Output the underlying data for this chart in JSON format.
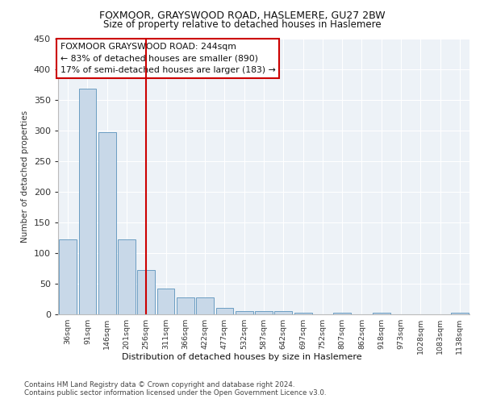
{
  "title1": "FOXMOOR, GRAYSWOOD ROAD, HASLEMERE, GU27 2BW",
  "title2": "Size of property relative to detached houses in Haslemere",
  "xlabel": "Distribution of detached houses by size in Haslemere",
  "ylabel": "Number of detached properties",
  "bar_labels": [
    "36sqm",
    "91sqm",
    "146sqm",
    "201sqm",
    "256sqm",
    "311sqm",
    "366sqm",
    "422sqm",
    "477sqm",
    "532sqm",
    "587sqm",
    "642sqm",
    "697sqm",
    "752sqm",
    "807sqm",
    "862sqm",
    "918sqm",
    "973sqm",
    "1028sqm",
    "1083sqm",
    "1138sqm"
  ],
  "bar_values": [
    122,
    368,
    297,
    122,
    72,
    42,
    28,
    28,
    10,
    5,
    5,
    5,
    2,
    0,
    3,
    0,
    2,
    0,
    0,
    0,
    2
  ],
  "bar_color": "#c8d8e8",
  "bar_edge_color": "#6b9dc2",
  "vline_x": 4,
  "vline_color": "#cc0000",
  "annotation_text": "FOXMOOR GRAYSWOOD ROAD: 244sqm\n← 83% of detached houses are smaller (890)\n17% of semi-detached houses are larger (183) →",
  "annotation_box_color": "#ffffff",
  "annotation_box_edge": "#cc0000",
  "ylim": [
    0,
    450
  ],
  "yticks": [
    0,
    50,
    100,
    150,
    200,
    250,
    300,
    350,
    400,
    450
  ],
  "bg_color": "#edf2f7",
  "footer": "Contains HM Land Registry data © Crown copyright and database right 2024.\nContains public sector information licensed under the Open Government Licence v3.0."
}
